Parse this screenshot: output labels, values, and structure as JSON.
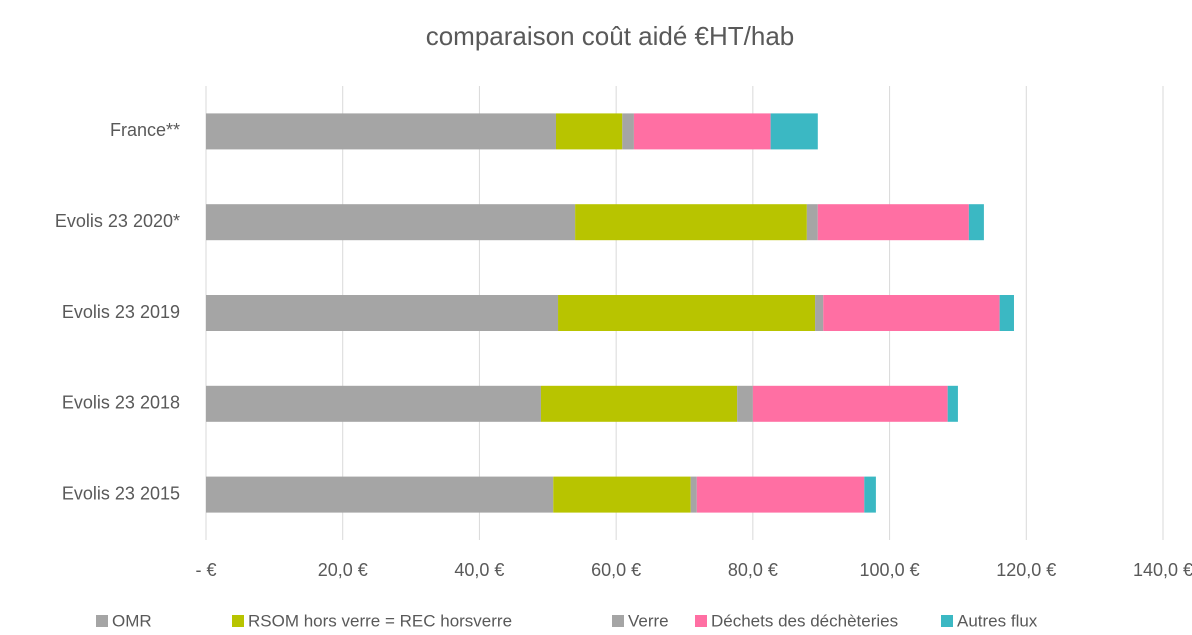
{
  "chart_data": {
    "type": "stacked_barh",
    "title": "comparaison coût aidé €HT/hab",
    "categories": [
      "France**",
      "Evolis 23 2020*",
      "Evolis 23 2019",
      "Evolis 23 2018",
      "Evolis 23 2015"
    ],
    "series": [
      {
        "name": "OMR",
        "color": "#a5a5a5",
        "values": [
          51.2,
          54.0,
          51.5,
          49.0,
          50.8
        ]
      },
      {
        "name": "RSOM hors verre = REC horsverre",
        "color": "#b8c400",
        "values": [
          9.7,
          33.9,
          37.6,
          28.7,
          20.1
        ]
      },
      {
        "name": "Verre",
        "color": "#a5a5a5",
        "values": [
          1.7,
          1.6,
          1.2,
          2.3,
          0.9
        ]
      },
      {
        "name": "Déchets des déchèteries",
        "color": "#ff6fa3",
        "values": [
          20.0,
          22.1,
          25.8,
          28.5,
          24.5
        ]
      },
      {
        "name": "Autres flux",
        "color": "#3bb8c3",
        "values": [
          6.9,
          2.2,
          2.1,
          1.5,
          1.7
        ]
      }
    ],
    "xlim": [
      0,
      140
    ],
    "xticks": [
      {
        "value": 0,
        "label": "-  €"
      },
      {
        "value": 20,
        "label": "20,0 €"
      },
      {
        "value": 40,
        "label": "40,0 €"
      },
      {
        "value": 60,
        "label": "60,0 €"
      },
      {
        "value": 80,
        "label": "80,0 €"
      },
      {
        "value": 100,
        "label": "100,0 €"
      },
      {
        "value": 120,
        "label": "120,0 €"
      },
      {
        "value": 140,
        "label": "140,0 €"
      }
    ],
    "grid": true,
    "legend": "bottom"
  }
}
